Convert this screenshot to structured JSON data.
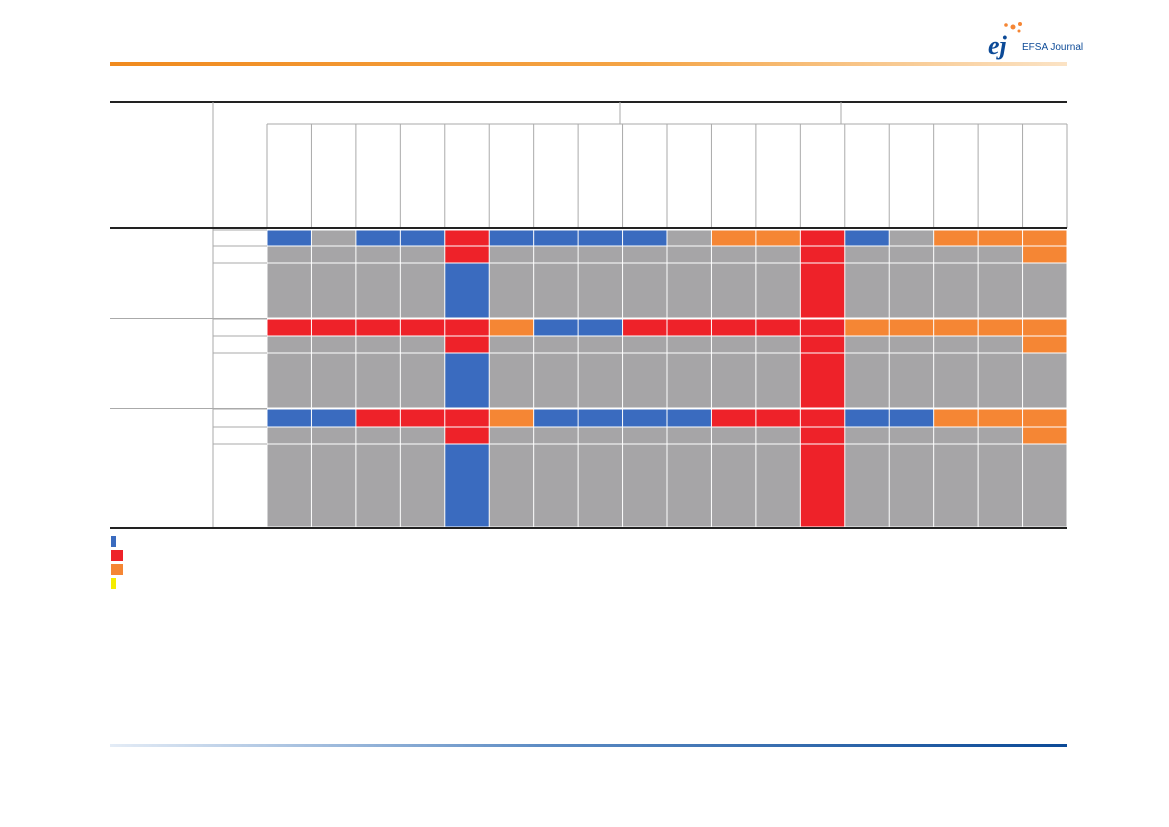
{
  "header": {
    "logo_mark": "ej",
    "journal": "EFSA Journal"
  },
  "table": {
    "rows": [
      [
        "#3a6bbf",
        "#a6a5a7",
        "#3a6bbf",
        "#3a6bbf",
        "#ee2229",
        "#3a6bbf",
        "#3a6bbf",
        "#3a6bbf",
        "#3a6bbf",
        "#a6a5a7",
        "#f58634",
        "#f58634",
        "#ee2229",
        "#3a6bbf",
        "#a6a5a7",
        "#f58634",
        "#f58634",
        "#f58634"
      ],
      [
        "#a6a5a7",
        "#a6a5a7",
        "#a6a5a7",
        "#a6a5a7",
        "#ee2229",
        "#a6a5a7",
        "#a6a5a7",
        "#a6a5a7",
        "#a6a5a7",
        "#a6a5a7",
        "#a6a5a7",
        "#a6a5a7",
        "#ee2229",
        "#a6a5a7",
        "#a6a5a7",
        "#a6a5a7",
        "#a6a5a7",
        "#f58634"
      ],
      [
        "#a6a5a7",
        "#a6a5a7",
        "#a6a5a7",
        "#a6a5a7",
        "#3a6bbf",
        "#a6a5a7",
        "#a6a5a7",
        "#a6a5a7",
        "#a6a5a7",
        "#a6a5a7",
        "#a6a5a7",
        "#a6a5a7",
        "#ee2229",
        "#a6a5a7",
        "#a6a5a7",
        "#a6a5a7",
        "#a6a5a7",
        "#a6a5a7"
      ],
      [
        "#ee2229",
        "#ee2229",
        "#ee2229",
        "#ee2229",
        "#ee2229",
        "#f58634",
        "#3a6bbf",
        "#3a6bbf",
        "#ee2229",
        "#ee2229",
        "#ee2229",
        "#ee2229",
        "#ee2229",
        "#f58634",
        "#f58634",
        "#f58634",
        "#f58634",
        "#f58634"
      ],
      [
        "#a6a5a7",
        "#a6a5a7",
        "#a6a5a7",
        "#a6a5a7",
        "#ee2229",
        "#a6a5a7",
        "#a6a5a7",
        "#a6a5a7",
        "#a6a5a7",
        "#a6a5a7",
        "#a6a5a7",
        "#a6a5a7",
        "#ee2229",
        "#a6a5a7",
        "#a6a5a7",
        "#a6a5a7",
        "#a6a5a7",
        "#f58634"
      ],
      [
        "#a6a5a7",
        "#a6a5a7",
        "#a6a5a7",
        "#a6a5a7",
        "#3a6bbf",
        "#a6a5a7",
        "#a6a5a7",
        "#a6a5a7",
        "#a6a5a7",
        "#a6a5a7",
        "#a6a5a7",
        "#a6a5a7",
        "#ee2229",
        "#a6a5a7",
        "#a6a5a7",
        "#a6a5a7",
        "#a6a5a7",
        "#a6a5a7"
      ],
      [
        "#3a6bbf",
        "#3a6bbf",
        "#ee2229",
        "#ee2229",
        "#ee2229",
        "#f58634",
        "#3a6bbf",
        "#3a6bbf",
        "#3a6bbf",
        "#3a6bbf",
        "#ee2229",
        "#ee2229",
        "#ee2229",
        "#3a6bbf",
        "#3a6bbf",
        "#f58634",
        "#f58634",
        "#f58634"
      ],
      [
        "#a6a5a7",
        "#a6a5a7",
        "#a6a5a7",
        "#a6a5a7",
        "#ee2229",
        "#a6a5a7",
        "#a6a5a7",
        "#a6a5a7",
        "#a6a5a7",
        "#a6a5a7",
        "#a6a5a7",
        "#a6a5a7",
        "#ee2229",
        "#a6a5a7",
        "#a6a5a7",
        "#a6a5a7",
        "#a6a5a7",
        "#f58634"
      ],
      [
        "#a6a5a7",
        "#a6a5a7",
        "#a6a5a7",
        "#a6a5a7",
        "#3a6bbf",
        "#a6a5a7",
        "#a6a5a7",
        "#a6a5a7",
        "#a6a5a7",
        "#a6a5a7",
        "#a6a5a7",
        "#a6a5a7",
        "#ee2229",
        "#a6a5a7",
        "#a6a5a7",
        "#a6a5a7",
        "#a6a5a7",
        "#a6a5a7"
      ]
    ]
  },
  "legend": {
    "colors": [
      "#3a6bbf",
      "#ee2229",
      "#f58634",
      "#f5ec00"
    ]
  }
}
